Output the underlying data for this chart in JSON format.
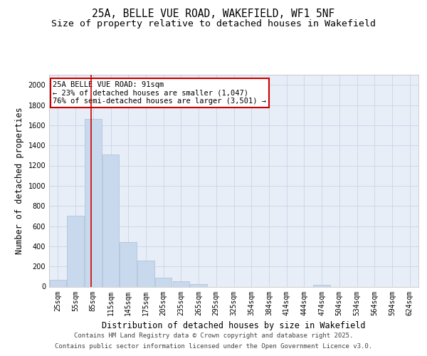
{
  "title_line1": "25A, BELLE VUE ROAD, WAKEFIELD, WF1 5NF",
  "title_line2": "Size of property relative to detached houses in Wakefield",
  "xlabel": "Distribution of detached houses by size in Wakefield",
  "ylabel": "Number of detached properties",
  "categories": [
    "25sqm",
    "55sqm",
    "85sqm",
    "115sqm",
    "145sqm",
    "175sqm",
    "205sqm",
    "235sqm",
    "265sqm",
    "295sqm",
    "325sqm",
    "354sqm",
    "384sqm",
    "414sqm",
    "444sqm",
    "474sqm",
    "504sqm",
    "534sqm",
    "564sqm",
    "594sqm",
    "624sqm"
  ],
  "values": [
    65,
    700,
    1660,
    1310,
    440,
    255,
    90,
    50,
    25,
    0,
    0,
    0,
    0,
    0,
    0,
    20,
    0,
    0,
    0,
    0,
    0
  ],
  "bar_color": "#c9d9ed",
  "bar_edge_color": "#a8bfd8",
  "grid_color": "#c8d4e8",
  "background_color": "#e8eef8",
  "property_line_x": 1.8,
  "annotation_text": "25A BELLE VUE ROAD: 91sqm\n← 23% of detached houses are smaller (1,047)\n76% of semi-detached houses are larger (3,501) →",
  "annotation_box_color": "#ffffff",
  "annotation_box_edge_color": "#cc0000",
  "ylim": [
    0,
    2100
  ],
  "yticks": [
    0,
    200,
    400,
    600,
    800,
    1000,
    1200,
    1400,
    1600,
    1800,
    2000
  ],
  "footer_line1": "Contains HM Land Registry data © Crown copyright and database right 2025.",
  "footer_line2": "Contains public sector information licensed under the Open Government Licence v3.0.",
  "title_fontsize": 10.5,
  "subtitle_fontsize": 9.5,
  "axis_label_fontsize": 8.5,
  "tick_fontsize": 7,
  "annotation_fontsize": 7.5,
  "footer_fontsize": 6.5
}
